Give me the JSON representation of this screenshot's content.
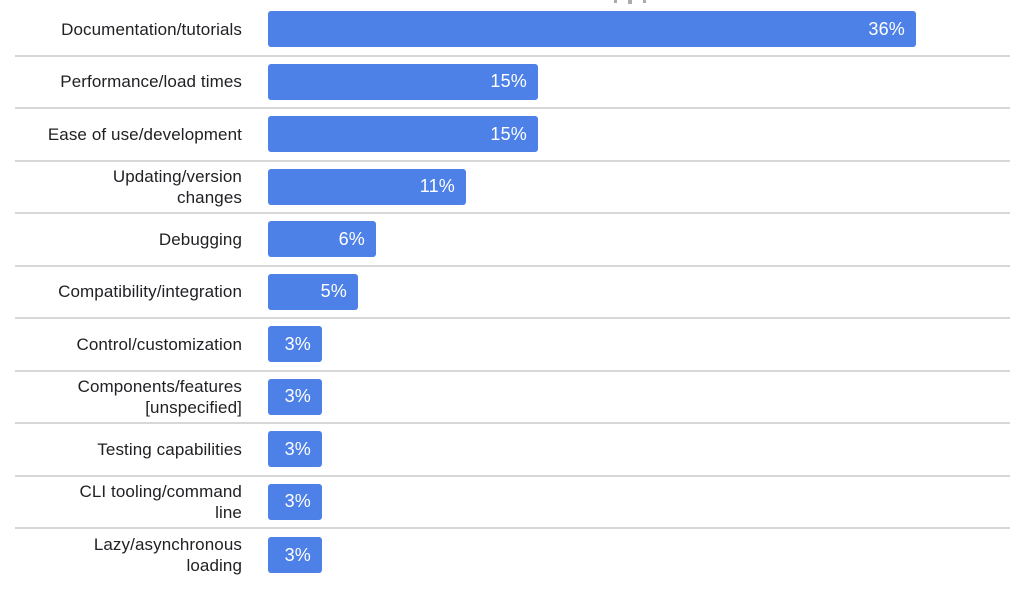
{
  "chart_data": {
    "type": "bar",
    "orientation": "horizontal",
    "categories": [
      "Documentation/tutorials",
      "Performance/load times",
      "Ease of use/development",
      "Updating/version changes",
      "Debugging",
      "Compatibility/integration",
      "Control/customization",
      "Components/features [unspecified]",
      "Testing capabilities",
      "CLI tooling/command line",
      "Lazy/asynchronous loading"
    ],
    "display_labels": [
      "Documentation/tutorials",
      "Performance/load times",
      "Ease of use/development",
      "Updating/version\nchanges",
      "Debugging",
      "Compatibility/integration",
      "Control/customization",
      "Components/features\n[unspecified]",
      "Testing capabilities",
      "CLI tooling/command\nline",
      "Lazy/asynchronous\nloading"
    ],
    "values": [
      36,
      15,
      15,
      11,
      6,
      5,
      3,
      3,
      3,
      3,
      3
    ],
    "value_labels": [
      "36%",
      "15%",
      "15%",
      "11%",
      "6%",
      "5%",
      "3%",
      "3%",
      "3%",
      "3%",
      "3%"
    ],
    "unit": "%",
    "xlim": [
      0,
      40
    ],
    "grid": "row-dividers-only",
    "legend": "none",
    "colors": {
      "bar": "#4d81e8",
      "value_label": "#ffffff",
      "category_label": "#202124",
      "divider": "#d7d7d7",
      "background": "#ffffff"
    }
  }
}
